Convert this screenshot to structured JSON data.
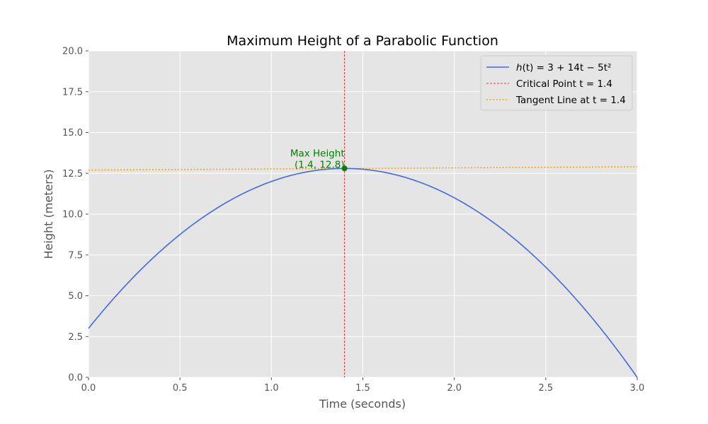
{
  "chart_data": {
    "type": "line",
    "title": "Maximum Height of a Parabolic Function",
    "xlabel": "Time (seconds)",
    "ylabel": "Height (meters)",
    "xlim": [
      0,
      3
    ],
    "ylim": [
      0,
      20
    ],
    "xticks": [
      0,
      0.5,
      1,
      1.5,
      2,
      2.5,
      3
    ],
    "xtick_labels": [
      "0.0",
      "0.5",
      "1.0",
      "1.5",
      "2.0",
      "2.5",
      "3.0"
    ],
    "yticks": [
      0,
      2.5,
      5,
      7.5,
      10,
      12.5,
      15,
      17.5,
      20
    ],
    "ytick_labels": [
      "0.0",
      "2.5",
      "5.0",
      "7.5",
      "10.0",
      "12.5",
      "15.0",
      "17.5",
      "20.0"
    ],
    "grid": true,
    "legend_position": "top-right",
    "series": [
      {
        "name": "h(t) = 3 + 14t − 5t²",
        "style": "solid",
        "color": "#4169e1",
        "coefficients": {
          "a": -5,
          "b": 14,
          "c": 3
        },
        "x": [
          0,
          0.25,
          0.5,
          0.75,
          1.0,
          1.25,
          1.4,
          1.5,
          1.75,
          2.0,
          2.25,
          2.5,
          2.75,
          3.0
        ],
        "y": [
          3,
          6.19,
          8.75,
          10.69,
          12.0,
          12.69,
          12.8,
          12.75,
          12.19,
          11.0,
          9.19,
          6.75,
          3.69,
          0.0
        ]
      },
      {
        "name": "Critical Point t = 1.4",
        "style": "dashed",
        "color": "#ff0000",
        "x_value": 1.4
      },
      {
        "name": "Tangent Line at t = 1.4",
        "style": "dotted",
        "color": "#ffa500",
        "x": [
          0,
          3
        ],
        "y": [
          12.7,
          12.9
        ]
      }
    ],
    "points": [
      {
        "x": 1.4,
        "y": 12.8,
        "color": "#008000"
      }
    ],
    "annotations": [
      {
        "line1": "Max Height",
        "line2": "(1.4, 12.8)",
        "x": 1.4,
        "y": 12.8,
        "color": "#008000"
      }
    ],
    "legend": [
      {
        "prefix_italic": "h",
        "text": "(t) = 3 + 14t − 5t²",
        "color": "#4169e1",
        "style": "solid"
      },
      {
        "prefix_italic": "",
        "text": "Critical Point t = 1.4",
        "color": "#ff0000",
        "style": "dashed"
      },
      {
        "prefix_italic": "",
        "text": "Tangent Line at t = 1.4",
        "color": "#ffa500",
        "style": "dotted"
      }
    ],
    "colors": {
      "plot_background": "#e5e5e5",
      "grid": "#ffffff",
      "curve": "#4169e1",
      "critical": "#ff0000",
      "tangent": "#ffa500",
      "max_point": "#008000"
    }
  }
}
